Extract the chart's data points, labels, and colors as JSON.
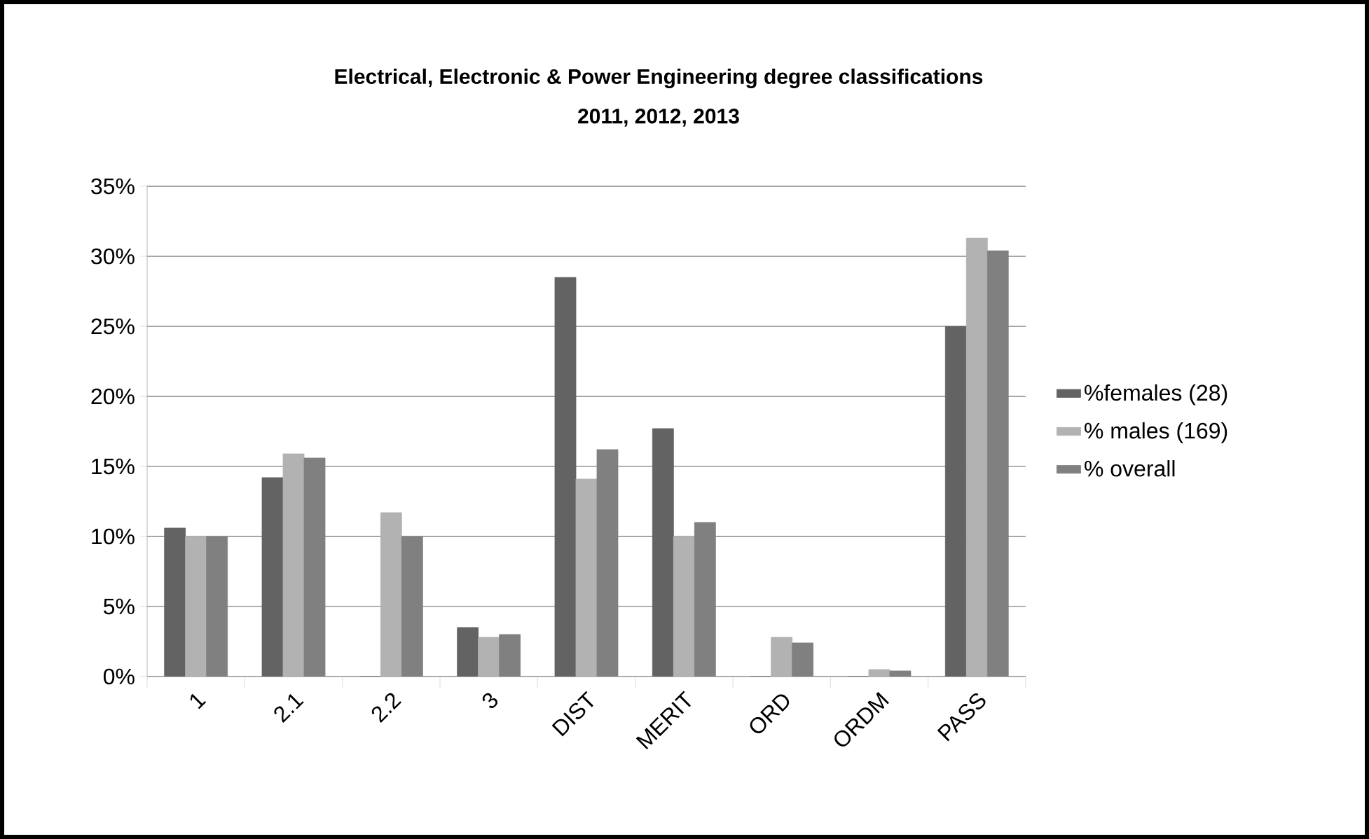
{
  "chart_data": {
    "type": "bar",
    "title": "Electrical, Electronic & Power Engineering degree classifications",
    "subtitle": "2011, 2012, 2013",
    "categories": [
      "1",
      "2.1",
      "2.2",
      "3",
      "DIST",
      "MERIT",
      "ORD",
      "ORDM",
      "PASS"
    ],
    "series": [
      {
        "name": "%females (28)",
        "color": "#636363",
        "values": [
          10.6,
          14.2,
          0,
          3.5,
          28.5,
          17.7,
          0,
          0,
          25
        ]
      },
      {
        "name": "% males (169)",
        "color": "#b2b2b2",
        "values": [
          10,
          15.9,
          11.7,
          2.8,
          14.1,
          10,
          2.8,
          0.5,
          31.3
        ]
      },
      {
        "name": "% overall",
        "color": "#808080",
        "values": [
          10,
          15.6,
          10,
          3.0,
          16.2,
          11.0,
          2.4,
          0.4,
          30.4
        ]
      }
    ],
    "ylim": [
      0,
      35
    ],
    "yticks": [
      {
        "value": 0,
        "label": "0%"
      },
      {
        "value": 5,
        "label": "5%"
      },
      {
        "value": 10,
        "label": "10%"
      },
      {
        "value": 15,
        "label": "15%"
      },
      {
        "value": 20,
        "label": "20%"
      },
      {
        "value": 25,
        "label": "25%"
      },
      {
        "value": 30,
        "label": "30%"
      },
      {
        "value": 35,
        "label": "35%"
      }
    ],
    "grid": "y",
    "legend": "right"
  }
}
